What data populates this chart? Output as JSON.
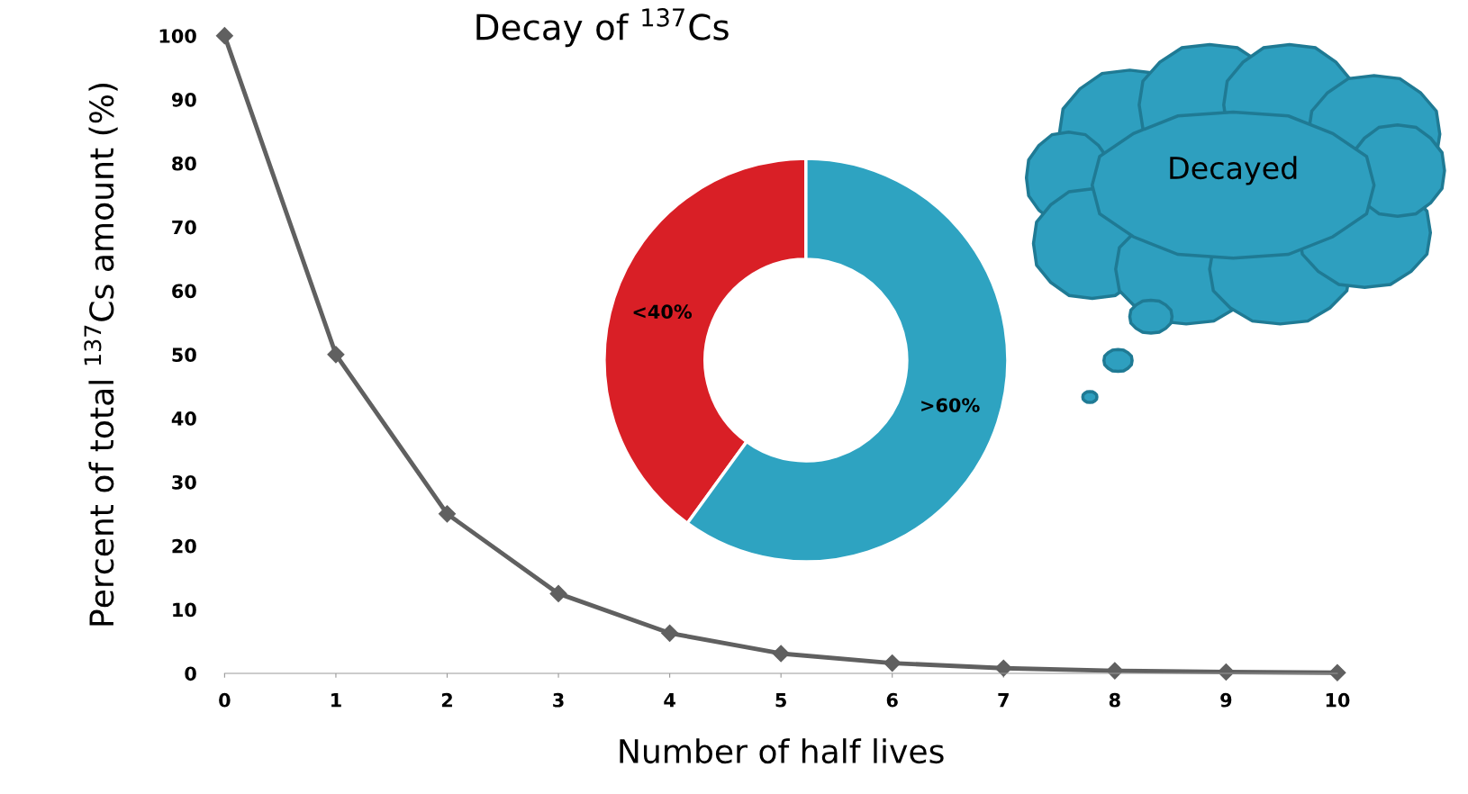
{
  "chart_data": [
    {
      "type": "line",
      "title": "Decay of $^{137}$Cs",
      "xlabel": "Number of half lives",
      "ylabel": "Percent of total $^{137}$Cs amount (%)",
      "x": [
        0,
        1,
        2,
        3,
        4,
        5,
        6,
        7,
        8,
        9,
        10
      ],
      "series": [
        {
          "color": "#606060",
          "values": [
            100,
            50,
            25,
            12.5,
            6.3,
            3.1,
            1.6,
            0.8,
            0.4,
            0.2,
            0.1
          ]
        }
      ],
      "xlim": [
        0,
        10
      ],
      "xticks": [
        0,
        1,
        2,
        3,
        4,
        5,
        6,
        7,
        8,
        9,
        10
      ],
      "ylim": [
        0,
        100
      ],
      "yticks": [
        0,
        10,
        20,
        30,
        40,
        50,
        60,
        70,
        80,
        90,
        100
      ],
      "grid": false,
      "legend": false,
      "marker": "diamond",
      "line_style": "solid"
    },
    {
      "type": "donut",
      "categories": [
        null,
        null
      ],
      "values": [
        40,
        60
      ],
      "colors": [
        "#d91f26",
        "#2ea3c1"
      ],
      "value_labels": [
        "<40%",
        ">60%"
      ],
      "annotations": [
        "Decayed"
      ]
    }
  ]
}
